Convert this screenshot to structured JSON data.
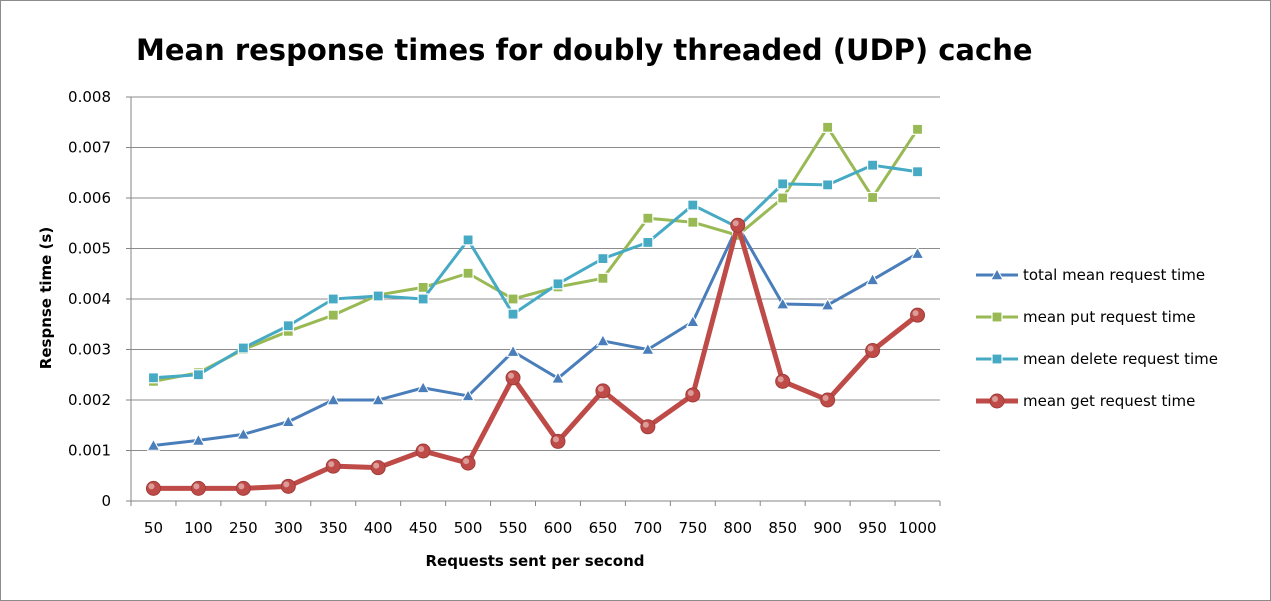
{
  "chart_data": {
    "type": "line",
    "title": "Mean response times for doubly threaded (UDP) cache",
    "xlabel": "Requests sent per second",
    "ylabel": "Respnse time (s)",
    "categories": [
      "50",
      "100",
      "250",
      "300",
      "350",
      "400",
      "450",
      "500",
      "550",
      "600",
      "650",
      "700",
      "750",
      "800",
      "850",
      "900",
      "950",
      "1000"
    ],
    "ylim": [
      0,
      0.008
    ],
    "yticks": [
      "0",
      "0.001",
      "0.002",
      "0.003",
      "0.004",
      "0.005",
      "0.006",
      "0.007",
      "0.008"
    ],
    "grid": "horizontal",
    "legend_position": "right",
    "series": [
      {
        "name": "total mean request time",
        "color": "#4a7ebb",
        "marker": "triangle",
        "values": [
          0.0011,
          0.0012,
          0.00132,
          0.00157,
          0.002,
          0.002,
          0.00224,
          0.00208,
          0.00296,
          0.00243,
          0.00317,
          0.003,
          0.00355,
          0.00545,
          0.0039,
          0.00388,
          0.00438,
          0.0049
        ]
      },
      {
        "name": "mean put request time",
        "color": "#98b954",
        "marker": "square",
        "values": [
          0.00237,
          0.00254,
          0.003,
          0.00336,
          0.00368,
          0.00408,
          0.00423,
          0.00451,
          0.004,
          0.00424,
          0.00441,
          0.0056,
          0.00552,
          0.00526,
          0.006,
          0.0074,
          0.00601,
          0.00736
        ]
      },
      {
        "name": "mean delete request time",
        "color": "#46aac5",
        "marker": "square",
        "values": [
          0.00244,
          0.0025,
          0.00303,
          0.00347,
          0.004,
          0.00406,
          0.004,
          0.00517,
          0.0037,
          0.0043,
          0.0048,
          0.00512,
          0.00586,
          0.00542,
          0.00628,
          0.00626,
          0.00665,
          0.00652
        ]
      },
      {
        "name": "mean get request time",
        "color": "#be4b48",
        "marker": "circle",
        "values": [
          0.00025,
          0.00025,
          0.00025,
          0.00029,
          0.00069,
          0.00066,
          0.00099,
          0.00075,
          0.00244,
          0.00118,
          0.00218,
          0.00147,
          0.0021,
          0.00546,
          0.00237,
          0.002,
          0.00298,
          0.00368
        ]
      }
    ]
  }
}
